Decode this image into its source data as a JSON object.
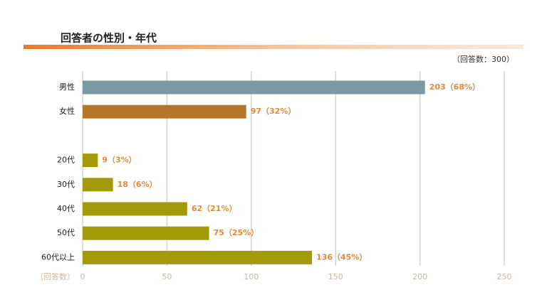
{
  "chart_data": {
    "type": "bar",
    "orientation": "horizontal",
    "title": "回答者の性別・年代",
    "subtitle": "（回答数：300）",
    "x_label": "（回答数）",
    "categories": [
      "男性",
      "女性",
      null,
      "20代",
      "30代",
      "40代",
      "50代",
      "60代以上"
    ],
    "values": [
      203,
      97,
      null,
      9,
      18,
      62,
      75,
      136
    ],
    "value_labels": [
      "203（68%）",
      "97（32%）",
      null,
      "9（3%）",
      "18（6%）",
      "62（21%）",
      "75（25%）",
      "136（45%）"
    ],
    "colors": [
      "#7a99a3",
      "#b5762a",
      null,
      "#a39a0a",
      "#a39a0a",
      "#a39a0a",
      "#a39a0a",
      "#a39a0a"
    ],
    "xlim": [
      0,
      250
    ],
    "xticks": [
      0,
      50,
      100,
      150,
      200,
      250
    ],
    "grid": true
  }
}
